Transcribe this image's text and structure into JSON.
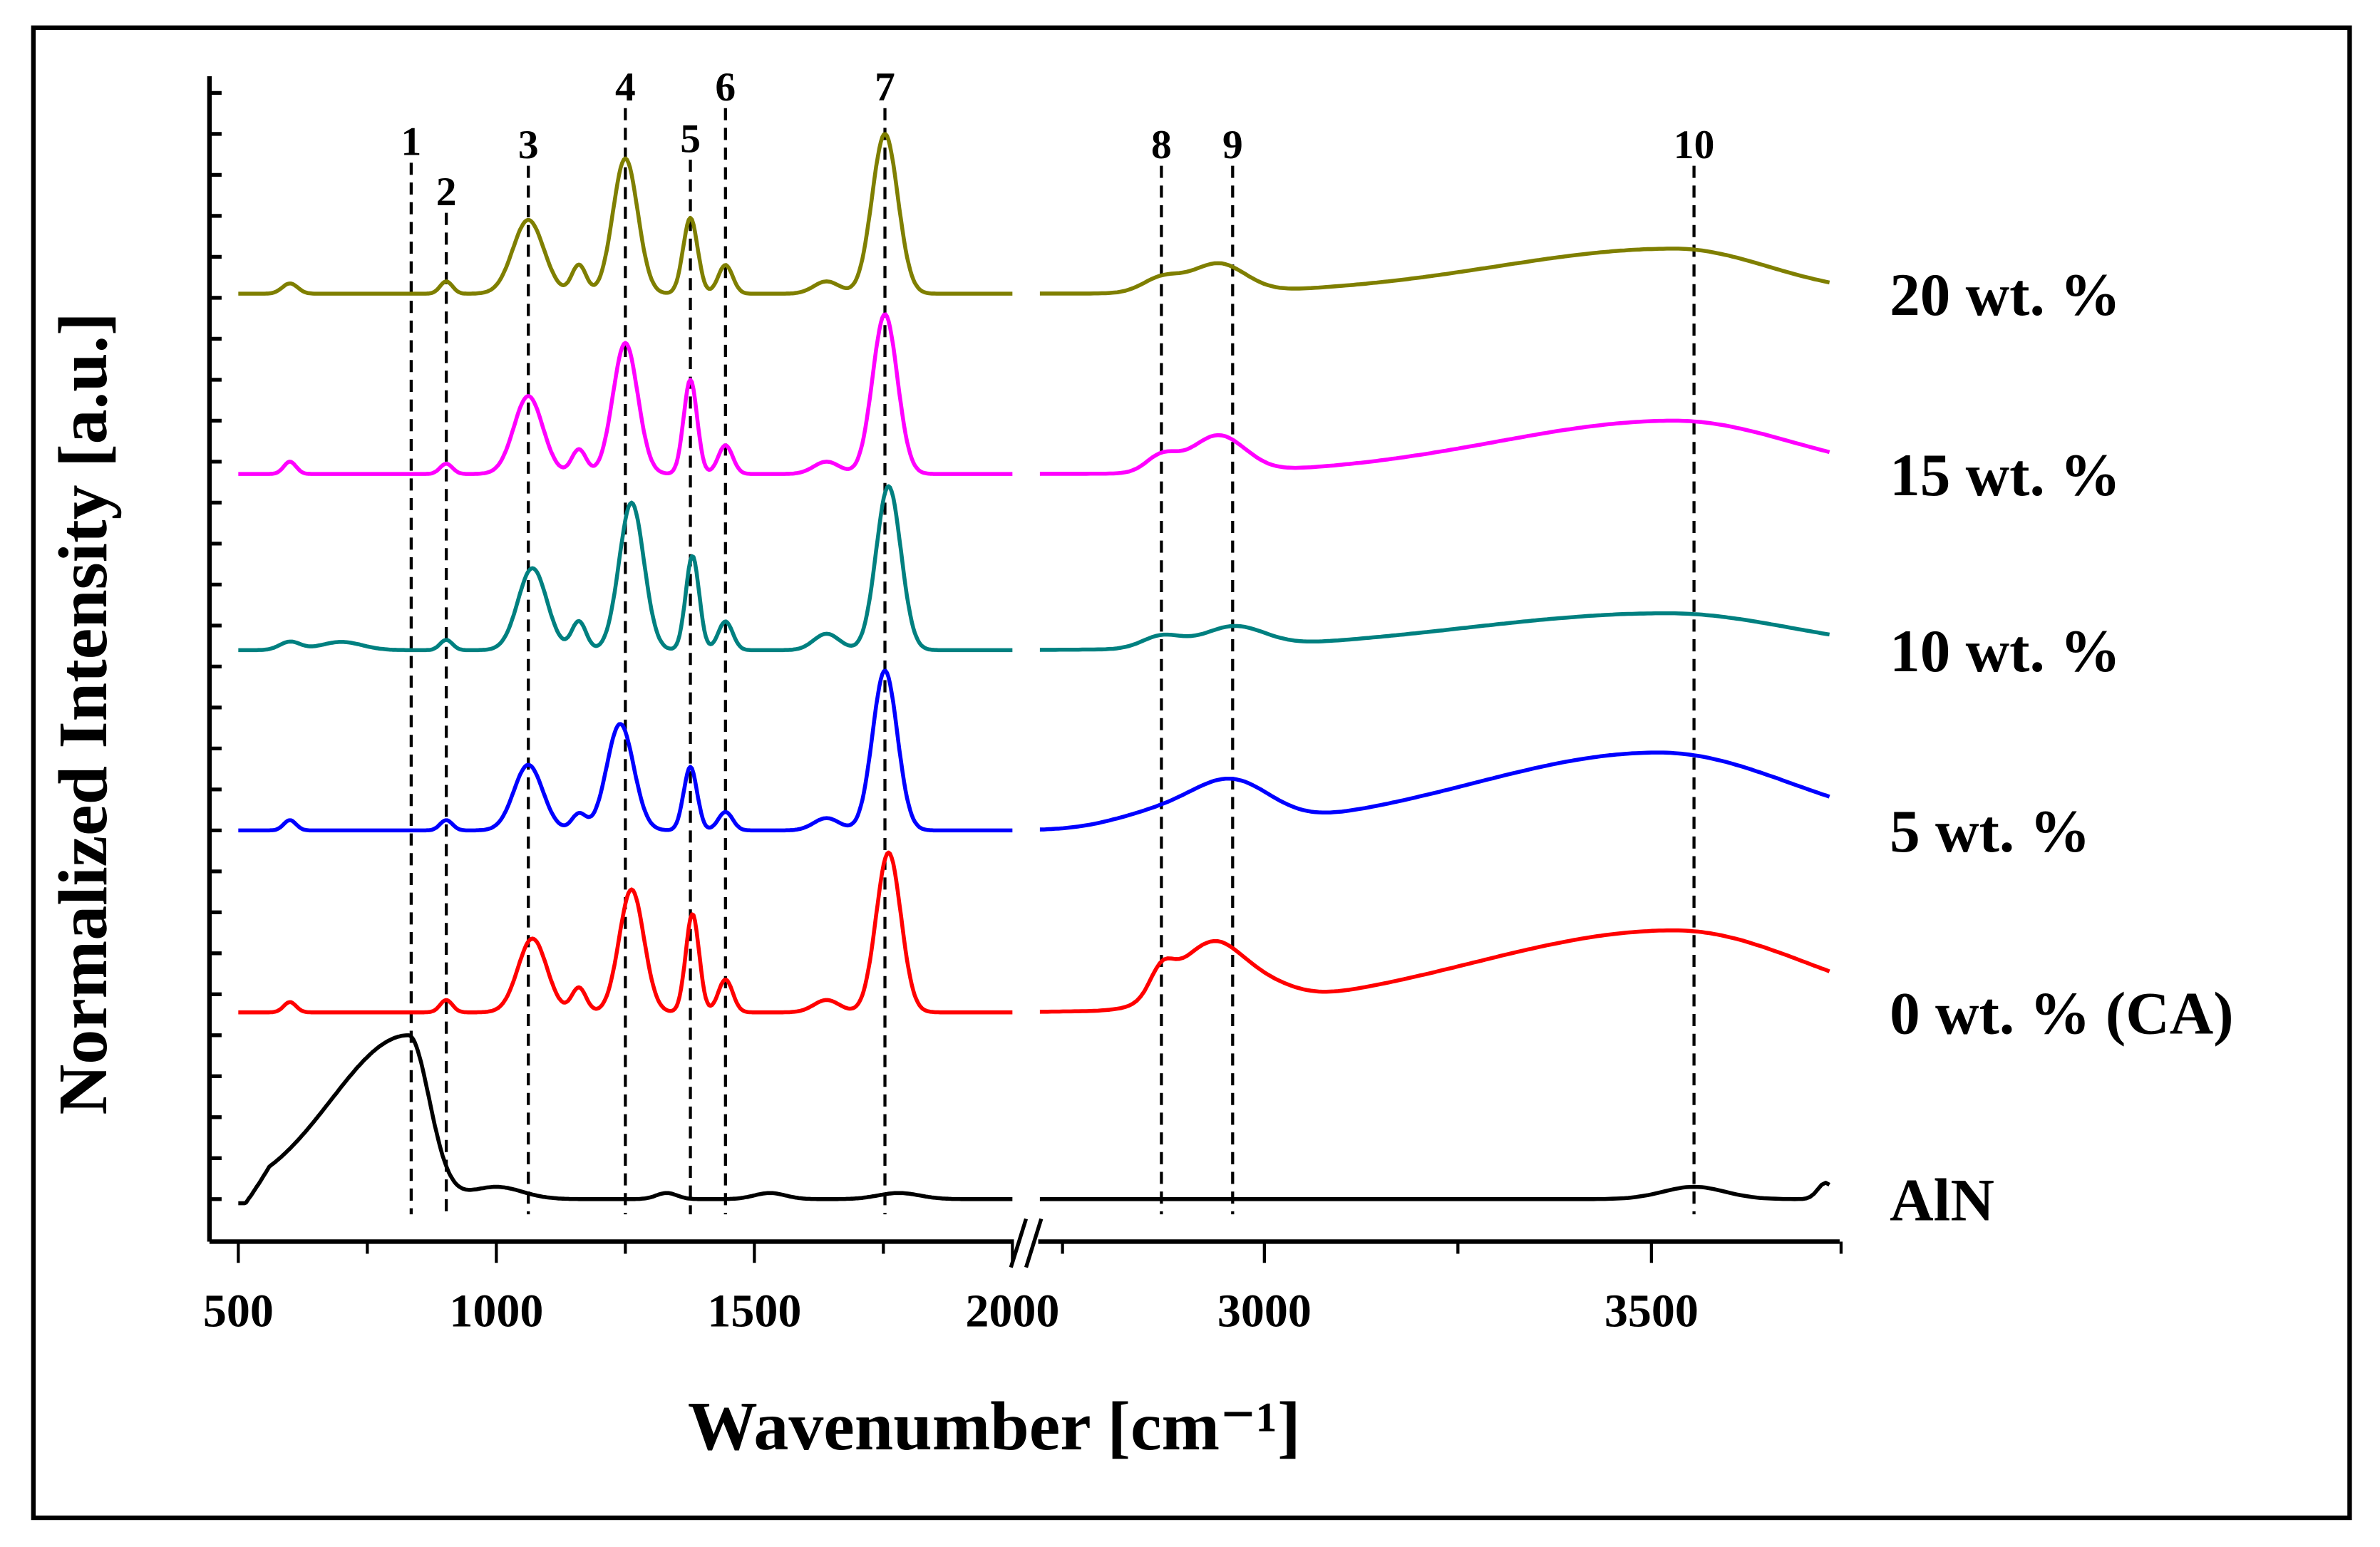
{
  "chart_data": {
    "type": "line",
    "title": "",
    "xlabel": "Wavenumber [cm⁻¹]",
    "ylabel": "Normalized Intensity [a.u.]",
    "x_segments": [
      [
        500,
        2000
      ],
      [
        2710,
        3730
      ]
    ],
    "x_ticks": [
      {
        "value": 500,
        "label": "500"
      },
      {
        "value": 1000,
        "label": "1000"
      },
      {
        "value": 1500,
        "label": "1500"
      },
      {
        "value": 2000,
        "label": "2000"
      },
      {
        "value": 3000,
        "label": "3000"
      },
      {
        "value": 3500,
        "label": "3500"
      }
    ],
    "ylim": [
      -1,
      27.5
    ],
    "grid": false,
    "peak_markers": [
      {
        "label": "1",
        "x": 835
      },
      {
        "label": "2",
        "x": 903
      },
      {
        "label": "3",
        "x": 1062
      },
      {
        "label": "4",
        "x": 1250
      },
      {
        "label": "5",
        "x": 1376
      },
      {
        "label": "6",
        "x": 1444
      },
      {
        "label": "7",
        "x": 1753
      },
      {
        "label": "8",
        "x": 2867
      },
      {
        "label": "9",
        "x": 2959
      },
      {
        "label": "10",
        "x": 3555
      }
    ],
    "series": [
      {
        "name": "20 wt. %",
        "color": "#7f7f00",
        "offset": 22.1,
        "peaks": [
          [
            600,
            0.25,
            15,
            15
          ],
          [
            903,
            0.3,
            12,
            12
          ],
          [
            1062,
            1.8,
            30,
            30
          ],
          [
            1160,
            0.7,
            14,
            14
          ],
          [
            1250,
            3.3,
            24,
            24
          ],
          [
            1376,
            1.85,
            14,
            14
          ],
          [
            1444,
            0.7,
            14,
            14
          ],
          [
            1640,
            0.3,
            25,
            25
          ],
          [
            1753,
            3.9,
            25,
            25
          ],
          [
            2867,
            0.35,
            25,
            25
          ],
          [
            2940,
            0.7,
            35,
            35
          ],
          [
            3530,
            1.1,
            230,
            120
          ]
        ]
      },
      {
        "name": "15 wt. %",
        "color": "#ff00ff",
        "offset": 17.7,
        "peaks": [
          [
            600,
            0.3,
            12,
            12
          ],
          [
            903,
            0.25,
            12,
            12
          ],
          [
            1062,
            1.9,
            28,
            28
          ],
          [
            1160,
            0.6,
            14,
            14
          ],
          [
            1250,
            3.2,
            24,
            24
          ],
          [
            1376,
            2.3,
            13,
            13
          ],
          [
            1444,
            0.7,
            14,
            14
          ],
          [
            1640,
            0.3,
            25,
            25
          ],
          [
            1753,
            3.9,
            24,
            24
          ],
          [
            2867,
            0.4,
            20,
            20
          ],
          [
            2940,
            0.9,
            35,
            35
          ],
          [
            3530,
            1.3,
            230,
            150
          ]
        ]
      },
      {
        "name": "10 wt. %",
        "color": "#008080",
        "offset": 13.4,
        "peaks": [
          [
            600,
            0.2,
            20,
            20
          ],
          [
            700,
            0.2,
            40,
            40
          ],
          [
            903,
            0.25,
            12,
            12
          ],
          [
            1070,
            2.0,
            28,
            28
          ],
          [
            1160,
            0.7,
            14,
            14
          ],
          [
            1262,
            3.6,
            24,
            24
          ],
          [
            1380,
            2.3,
            13,
            13
          ],
          [
            1444,
            0.7,
            14,
            14
          ],
          [
            1640,
            0.4,
            25,
            25
          ],
          [
            1760,
            4.0,
            24,
            24
          ],
          [
            2867,
            0.3,
            25,
            25
          ],
          [
            2960,
            0.5,
            40,
            40
          ],
          [
            3520,
            0.9,
            260,
            160
          ]
        ]
      },
      {
        "name": "5 wt. %",
        "color": "#0000ff",
        "offset": 9.0,
        "peaks": [
          [
            600,
            0.25,
            12,
            12
          ],
          [
            903,
            0.25,
            12,
            12
          ],
          [
            1062,
            1.6,
            28,
            28
          ],
          [
            1160,
            0.4,
            14,
            14
          ],
          [
            1240,
            2.6,
            26,
            26
          ],
          [
            1376,
            1.55,
            13,
            13
          ],
          [
            1444,
            0.45,
            14,
            14
          ],
          [
            1640,
            0.3,
            25,
            25
          ],
          [
            1753,
            3.9,
            24,
            24
          ],
          [
            2867,
            0.4,
            60,
            60
          ],
          [
            2959,
            1.0,
            50,
            50
          ],
          [
            3510,
            1.9,
            240,
            170
          ]
        ]
      },
      {
        "name": "0 wt. % (CA)",
        "color": "#ff0000",
        "offset": 4.56,
        "peaks": [
          [
            600,
            0.25,
            12,
            12
          ],
          [
            903,
            0.3,
            12,
            12
          ],
          [
            1070,
            1.8,
            28,
            28
          ],
          [
            1160,
            0.6,
            14,
            14
          ],
          [
            1262,
            3.0,
            24,
            24
          ],
          [
            1380,
            2.4,
            13,
            13
          ],
          [
            1444,
            0.8,
            14,
            14
          ],
          [
            1640,
            0.3,
            25,
            25
          ],
          [
            1760,
            3.9,
            24,
            24
          ],
          [
            2867,
            0.6,
            15,
            15
          ],
          [
            2930,
            1.5,
            45,
            40
          ],
          [
            3000,
            0.4,
            40,
            40
          ],
          [
            3530,
            2.0,
            260,
            170
          ]
        ]
      },
      {
        "name": "AlN",
        "color": "#000000",
        "offset": 0,
        "peaks": [
          [
            830,
            4.0,
            150,
            40
          ],
          [
            1000,
            0.3,
            50,
            50
          ],
          [
            1330,
            0.15,
            20,
            20
          ],
          [
            1530,
            0.15,
            30,
            30
          ],
          [
            1780,
            0.15,
            40,
            40
          ],
          [
            3555,
            0.3,
            40,
            40
          ],
          [
            3725,
            0.4,
            10,
            10
          ]
        ]
      }
    ]
  }
}
